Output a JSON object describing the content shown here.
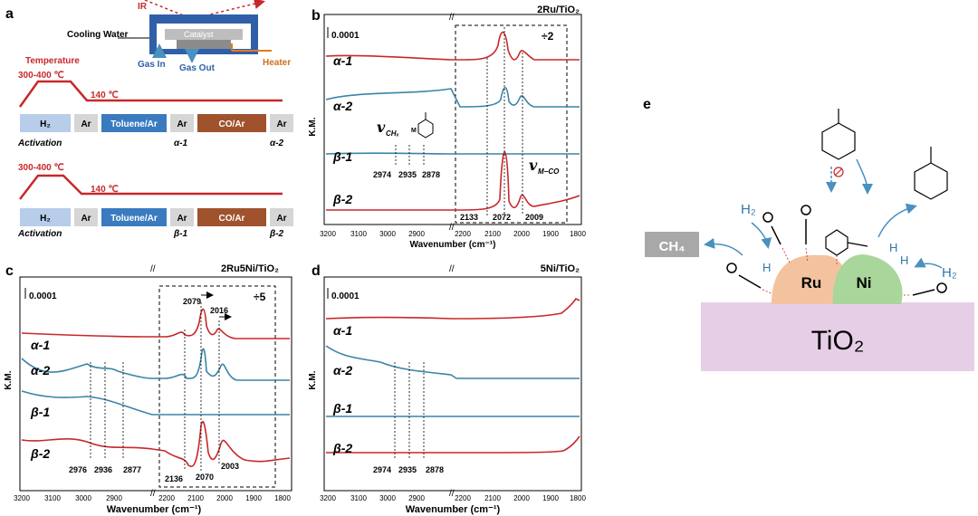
{
  "panel_a": {
    "letter": "a",
    "ir": "IR",
    "cooling_water": "Cooling Water",
    "catalyst": "Catalyst",
    "gas_in": "Gas In",
    "gas_out": "Gas Out",
    "heater": "Heater",
    "temperature": "Temperature",
    "high_temp": "300-400 ℃",
    "low_temp": "140 ℃",
    "seq1": [
      "H₂",
      "Ar",
      "Toluene/Ar",
      "Ar",
      "CO/Ar",
      "Ar"
    ],
    "seq1_under": {
      "activation": "Activation",
      "p1": "α-1",
      "p2": "α-2"
    },
    "seq2": [
      "H₂",
      "Ar",
      "Toluene/Ar",
      "Ar",
      "CO/Ar",
      "Ar"
    ],
    "seq2_under": {
      "activation": "Activation",
      "p1": "β-1",
      "p2": "β-2"
    },
    "colors": {
      "h2": "#b7cde9",
      "ar": "#d6d6d6",
      "toluene": "#3a7bbf",
      "co": "#a0522d",
      "red": "#d02020"
    }
  },
  "panel_b": {
    "letter": "b",
    "title": "2Ru/TiO₂",
    "scale": "0.0001",
    "divide": "÷2",
    "ylabel": "K.M.",
    "xlabel": "Wavenumber (cm⁻¹)",
    "traces": [
      "α-1",
      "α-2",
      "β-1",
      "β-2"
    ],
    "peaks_left": [
      "2974",
      "2935",
      "2878"
    ],
    "peaks_right": [
      "2133",
      "2072",
      "2009"
    ],
    "ch_label": "v",
    "ch_sub": "CHₓ",
    "mco_label": "v",
    "mco_sub": "M−CO",
    "xticks": [
      "3200",
      "3100",
      "3000",
      "2900",
      "2200",
      "2100",
      "2000",
      "1900",
      "1800"
    ]
  },
  "panel_c": {
    "letter": "c",
    "title": "2Ru5Ni/TiO₂",
    "scale": "0.0001",
    "divide": "÷5",
    "ylabel": "K.M.",
    "xlabel": "Wavenumber (cm⁻¹)",
    "traces": [
      "α-1",
      "α-2",
      "β-1",
      "β-2"
    ],
    "peaks_left": [
      "2976",
      "2936",
      "2877"
    ],
    "peaks_right": [
      "2136",
      "2070",
      "2003"
    ],
    "peaks_top": [
      "2079",
      "2016"
    ],
    "xticks": [
      "3200",
      "3100",
      "3000",
      "2900",
      "2200",
      "2100",
      "2000",
      "1900",
      "1800"
    ]
  },
  "panel_d": {
    "letter": "d",
    "title": "5Ni/TiO₂",
    "scale": "0.0001",
    "ylabel": "K.M.",
    "xlabel": "Wavenumber (cm⁻¹)",
    "traces": [
      "α-1",
      "α-2",
      "β-1",
      "β-2"
    ],
    "peaks_left": [
      "2974",
      "2935",
      "2878"
    ],
    "xticks": [
      "3200",
      "3100",
      "3000",
      "2900",
      "2200",
      "2100",
      "2000",
      "1900",
      "1800"
    ]
  },
  "panel_e": {
    "letter": "e",
    "ch4": "CH₄",
    "h2_left": "H₂",
    "h2_right": "H₂",
    "ru": "Ru",
    "ni": "Ni",
    "support": "TiO₂",
    "colors": {
      "support": "#e6cfe6",
      "ru": "#f3c3a0",
      "ni": "#a9d69a",
      "arrow": "#4a90c0",
      "ch4_box": "#a8a8a8"
    }
  },
  "colors": {
    "red": "#c8282a",
    "blue": "#3a84a8"
  }
}
